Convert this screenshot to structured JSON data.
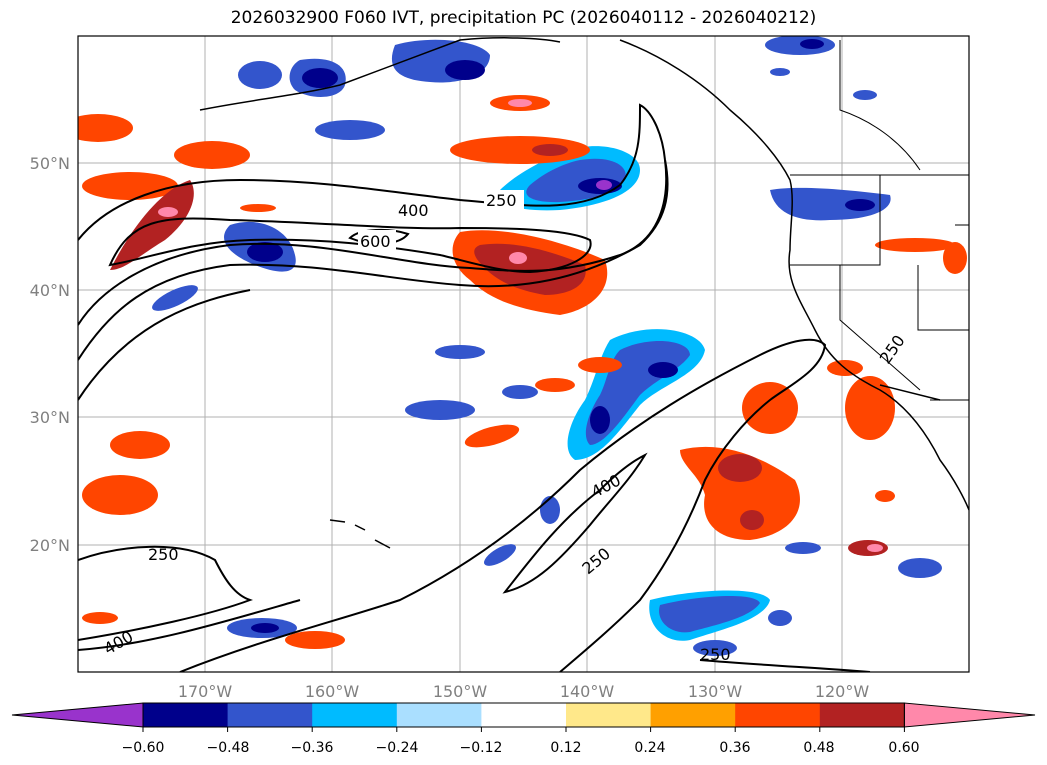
{
  "title": "2026032900 F060 IVT, precipitation PC (2026040112 - 2026040212)",
  "lat_labels": [
    "50°N",
    "40°N",
    "30°N",
    "20°N"
  ],
  "lon_labels": [
    "170°W",
    "160°W",
    "150°W",
    "140°W",
    "130°W",
    "120°W"
  ],
  "contour_labels": [
    "400",
    "250",
    "600",
    "400",
    "250",
    "250",
    "400",
    "250",
    "250"
  ],
  "colorbar": {
    "ticks": [
      "−0.60",
      "−0.48",
      "−0.36",
      "−0.24",
      "−0.12",
      "0.12",
      "0.24",
      "0.36",
      "0.48",
      "0.60"
    ],
    "colors": [
      "#9933cc",
      "#00008b",
      "#3355cc",
      "#00bbff",
      "#aadfff",
      "#ffffff",
      "#ffe88a",
      "#ffa000",
      "#ff4500",
      "#b22222",
      "#ff88aa"
    ]
  }
}
